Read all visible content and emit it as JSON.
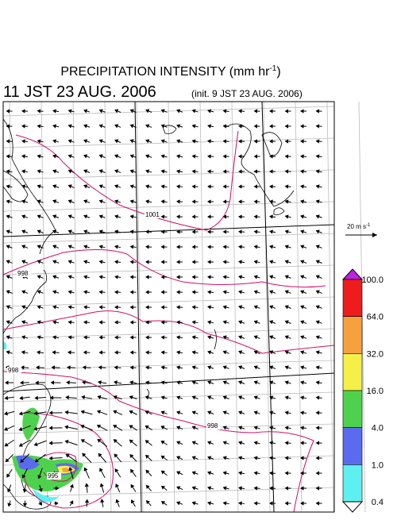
{
  "header": {
    "title": "PRECIPITATION INTENSITY (mm hr",
    "title_superscript": "-1",
    "title_close": ")",
    "valid_time": "11 JST 23 AUG. 2006",
    "init_time": "(init. 9 JST 23 AUG. 2006)"
  },
  "vector_scale": {
    "label": "20 m s",
    "superscript": "-1"
  },
  "contour_labels": [
    "1001",
    "998",
    "998",
    "998",
    "995"
  ],
  "colorbar": {
    "labels": [
      "100.0",
      "64.0",
      "32.0",
      "16.0",
      "4.0",
      "1.0",
      "0.4"
    ]
  }
}
